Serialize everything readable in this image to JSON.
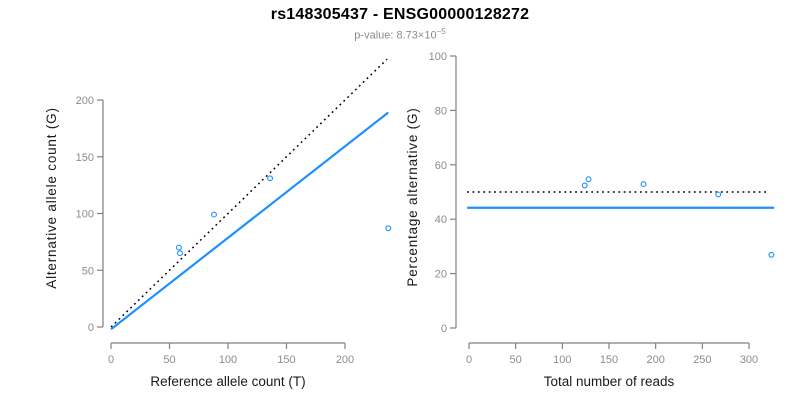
{
  "header": {
    "title": "rs148305437 - ENSG00000128272",
    "subtitle_prefix": "p-value: 8.73×10",
    "subtitle_exponent": "−5"
  },
  "colors": {
    "background": "#ffffff",
    "accent_blue": "#1E90FF",
    "identity_black": "#000000",
    "axis_gray": "#808080",
    "tick_text_gray": "#8c8c8c",
    "axis_title_color": "#1a1a1a",
    "title_color": "#000000",
    "subtitle_gray": "#8c8c8c"
  },
  "chart_data": [
    {
      "name": "allele-counts-plot",
      "type": "scatter",
      "title": "",
      "xlabel": "Reference allele count (T)",
      "ylabel": "Alternative allele count (G)",
      "xticks": [
        0,
        50,
        100,
        150,
        200
      ],
      "yticks": [
        0,
        50,
        100,
        150,
        200
      ],
      "xlim": [
        -9,
        247
      ],
      "ylim": [
        -10,
        240
      ],
      "grid": false,
      "legend": "none",
      "points": [
        [
          58,
          70
        ],
        [
          59,
          65
        ],
        [
          88,
          99
        ],
        [
          136,
          131
        ],
        [
          237,
          87
        ]
      ],
      "lines": [
        {
          "name": "identity-line",
          "style": "dotted",
          "color": "#000000",
          "x1": 0,
          "y1": 0,
          "x2": 236,
          "y2": 236
        },
        {
          "name": "fit-line",
          "style": "solid",
          "color": "#1E90FF",
          "x1": 0,
          "y1": -2,
          "x2": 237,
          "y2": 189
        }
      ]
    },
    {
      "name": "percentage-reads-plot",
      "type": "scatter",
      "title": "",
      "xlabel": "Total number of reads",
      "ylabel": "Percentage alternative (G)",
      "xticks": [
        0,
        50,
        100,
        150,
        200,
        250,
        300
      ],
      "yticks": [
        0,
        20,
        40,
        60,
        80,
        100
      ],
      "xlim": [
        -3,
        328
      ],
      "ylim": [
        -4,
        101
      ],
      "grid": false,
      "legend": "none",
      "points": [
        [
          128,
          54.7
        ],
        [
          124,
          52.4
        ],
        [
          187,
          52.9
        ],
        [
          267,
          49.1
        ],
        [
          324,
          26.9
        ]
      ],
      "lines": [
        {
          "name": "expected-50pct-line",
          "style": "dotted",
          "color": "#000000",
          "x1": -2,
          "y1": 50,
          "x2": 322,
          "y2": 50
        },
        {
          "name": "fit-line",
          "style": "solid",
          "color": "#1E90FF",
          "x1": -2,
          "y1": 44.2,
          "x2": 327,
          "y2": 44.2
        }
      ]
    }
  ]
}
